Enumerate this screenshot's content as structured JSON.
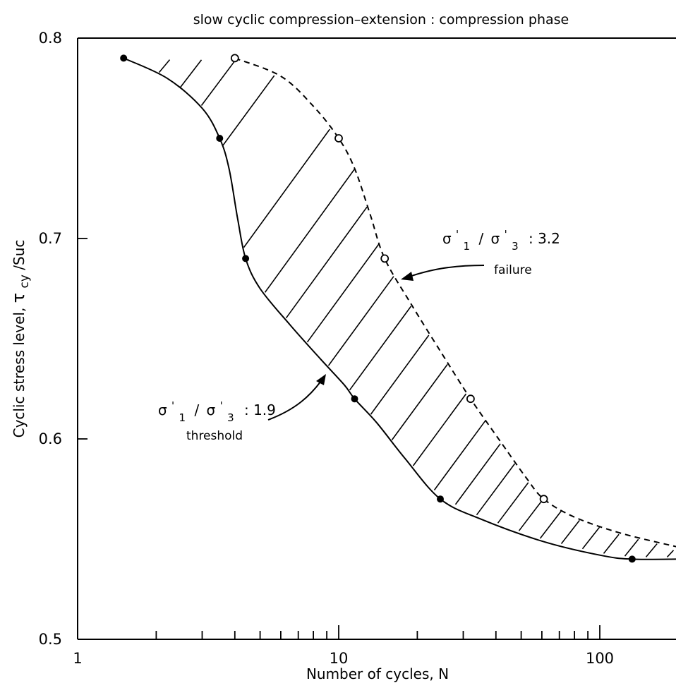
{
  "chart_data": {
    "type": "line",
    "title": "slow cyclic compression–extension : compression phase",
    "xlabel": "Number of cycles, N",
    "ylabel_text": "Cyclic stress level,",
    "ylabel_symbol": "τ",
    "ylabel_subscript": "cy",
    "ylabel_suffix": "/Suc",
    "x_scale": "log",
    "xlim": [
      1,
      200
    ],
    "ylim": [
      0.5,
      0.8
    ],
    "x_ticks": [
      {
        "value": 1,
        "label": "1"
      },
      {
        "value": 10,
        "label": "10"
      },
      {
        "value": 100,
        "label": "100"
      }
    ],
    "y_ticks": [
      {
        "value": 0.5,
        "label": "0.5"
      },
      {
        "value": 0.6,
        "label": "0.6"
      },
      {
        "value": 0.7,
        "label": "0.7"
      },
      {
        "value": 0.8,
        "label": "0.8"
      }
    ],
    "grid": false,
    "series": [
      {
        "style": "solid",
        "marker": "filled-circle",
        "points": [
          [
            1.5,
            0.79
          ],
          [
            3.5,
            0.75
          ],
          [
            4.4,
            0.69
          ],
          [
            11.5,
            0.62
          ],
          [
            24.5,
            0.57
          ],
          [
            133,
            0.54
          ]
        ],
        "curve": [
          [
            1.5,
            0.79
          ],
          [
            2.2,
            0.78
          ],
          [
            3.0,
            0.765
          ],
          [
            3.5,
            0.75
          ],
          [
            3.8,
            0.735
          ],
          [
            4.1,
            0.71
          ],
          [
            4.4,
            0.69
          ],
          [
            5.0,
            0.675
          ],
          [
            6.5,
            0.657
          ],
          [
            8.5,
            0.64
          ],
          [
            10.5,
            0.627
          ],
          [
            11.5,
            0.62
          ],
          [
            14,
            0.608
          ],
          [
            18,
            0.59
          ],
          [
            24.5,
            0.57
          ],
          [
            35,
            0.56
          ],
          [
            60,
            0.549
          ],
          [
            100,
            0.542
          ],
          [
            133,
            0.54
          ],
          [
            200,
            0.54
          ]
        ]
      },
      {
        "style": "dashed",
        "marker": "open-circle",
        "points": [
          [
            4,
            0.79
          ],
          [
            10,
            0.75
          ],
          [
            15,
            0.69
          ],
          [
            32,
            0.62
          ],
          [
            61,
            0.57
          ]
        ],
        "curve": [
          [
            4,
            0.79
          ],
          [
            6,
            0.781
          ],
          [
            8,
            0.766
          ],
          [
            10,
            0.75
          ],
          [
            11.5,
            0.735
          ],
          [
            13.2,
            0.712
          ],
          [
            15,
            0.69
          ],
          [
            19,
            0.667
          ],
          [
            25,
            0.642
          ],
          [
            32,
            0.62
          ],
          [
            42,
            0.598
          ],
          [
            52,
            0.581
          ],
          [
            61,
            0.57
          ],
          [
            80,
            0.561
          ],
          [
            120,
            0.553
          ],
          [
            200,
            0.546
          ]
        ]
      }
    ],
    "annotations": [
      {
        "name": "failure",
        "numerator": "σ",
        "denominator": "σ",
        "sub1": "1",
        "sub3": "3",
        "prime": "'",
        "slash": "/",
        "value_text": ": 3.2",
        "sub_label": "failure",
        "arrow_to": [
          16.5,
          0.677
        ]
      },
      {
        "name": "threshold",
        "numerator": "σ",
        "denominator": "σ",
        "sub1": "1",
        "sub3": "3",
        "prime": "'",
        "slash": "/",
        "value_text": ": 1.9",
        "sub_label": "threshold",
        "arrow_to": [
          9.2,
          0.634
        ]
      }
    ]
  }
}
